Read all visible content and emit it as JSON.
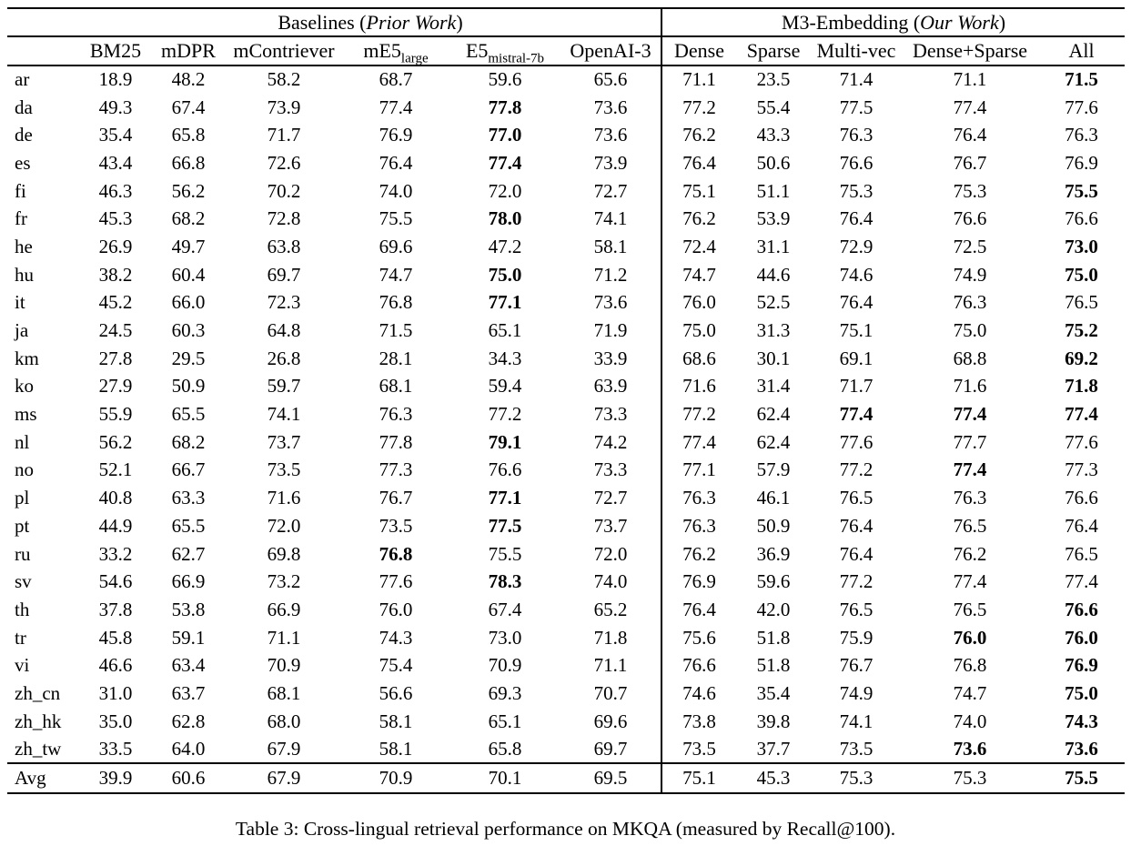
{
  "table": {
    "group_headers": {
      "baselines": {
        "prefix": "Baselines (",
        "italic": "Prior Work",
        "suffix": ")"
      },
      "m3": {
        "prefix": "M3-Embedding (",
        "italic": "Our Work",
        "suffix": ")"
      }
    },
    "columns": [
      {
        "id": "bm25",
        "label": "BM25"
      },
      {
        "id": "mdpr",
        "label": "mDPR"
      },
      {
        "id": "mcontriever",
        "label": "mContriever"
      },
      {
        "id": "me5-large",
        "label": "mE5",
        "sub": "large"
      },
      {
        "id": "e5-mistral-7b",
        "label": "E5",
        "sub": "mistral-7b"
      },
      {
        "id": "openai-3",
        "label": "OpenAI-3"
      },
      {
        "id": "dense",
        "label": "Dense"
      },
      {
        "id": "sparse",
        "label": "Sparse"
      },
      {
        "id": "multi-vec",
        "label": "Multi-vec"
      },
      {
        "id": "dense-sparse",
        "label": "Dense+Sparse"
      },
      {
        "id": "all",
        "label": "All"
      }
    ],
    "rows": [
      {
        "label": "ar",
        "values": [
          "18.9",
          "48.2",
          "58.2",
          "68.7",
          "59.6",
          "65.6",
          "71.1",
          "23.5",
          "71.4",
          "71.1",
          "71.5"
        ],
        "bold": [
          10
        ]
      },
      {
        "label": "da",
        "values": [
          "49.3",
          "67.4",
          "73.9",
          "77.4",
          "77.8",
          "73.6",
          "77.2",
          "55.4",
          "77.5",
          "77.4",
          "77.6"
        ],
        "bold": [
          4
        ]
      },
      {
        "label": "de",
        "values": [
          "35.4",
          "65.8",
          "71.7",
          "76.9",
          "77.0",
          "73.6",
          "76.2",
          "43.3",
          "76.3",
          "76.4",
          "76.3"
        ],
        "bold": [
          4
        ]
      },
      {
        "label": "es",
        "values": [
          "43.4",
          "66.8",
          "72.6",
          "76.4",
          "77.4",
          "73.9",
          "76.4",
          "50.6",
          "76.6",
          "76.7",
          "76.9"
        ],
        "bold": [
          4
        ]
      },
      {
        "label": "fi",
        "values": [
          "46.3",
          "56.2",
          "70.2",
          "74.0",
          "72.0",
          "72.7",
          "75.1",
          "51.1",
          "75.3",
          "75.3",
          "75.5"
        ],
        "bold": [
          10
        ]
      },
      {
        "label": "fr",
        "values": [
          "45.3",
          "68.2",
          "72.8",
          "75.5",
          "78.0",
          "74.1",
          "76.2",
          "53.9",
          "76.4",
          "76.6",
          "76.6"
        ],
        "bold": [
          4
        ]
      },
      {
        "label": "he",
        "values": [
          "26.9",
          "49.7",
          "63.8",
          "69.6",
          "47.2",
          "58.1",
          "72.4",
          "31.1",
          "72.9",
          "72.5",
          "73.0"
        ],
        "bold": [
          10
        ]
      },
      {
        "label": "hu",
        "values": [
          "38.2",
          "60.4",
          "69.7",
          "74.7",
          "75.0",
          "71.2",
          "74.7",
          "44.6",
          "74.6",
          "74.9",
          "75.0"
        ],
        "bold": [
          4,
          10
        ]
      },
      {
        "label": "it",
        "values": [
          "45.2",
          "66.0",
          "72.3",
          "76.8",
          "77.1",
          "73.6",
          "76.0",
          "52.5",
          "76.4",
          "76.3",
          "76.5"
        ],
        "bold": [
          4
        ]
      },
      {
        "label": "ja",
        "values": [
          "24.5",
          "60.3",
          "64.8",
          "71.5",
          "65.1",
          "71.9",
          "75.0",
          "31.3",
          "75.1",
          "75.0",
          "75.2"
        ],
        "bold": [
          10
        ]
      },
      {
        "label": "km",
        "values": [
          "27.8",
          "29.5",
          "26.8",
          "28.1",
          "34.3",
          "33.9",
          "68.6",
          "30.1",
          "69.1",
          "68.8",
          "69.2"
        ],
        "bold": [
          10
        ]
      },
      {
        "label": "ko",
        "values": [
          "27.9",
          "50.9",
          "59.7",
          "68.1",
          "59.4",
          "63.9",
          "71.6",
          "31.4",
          "71.7",
          "71.6",
          "71.8"
        ],
        "bold": [
          10
        ]
      },
      {
        "label": "ms",
        "values": [
          "55.9",
          "65.5",
          "74.1",
          "76.3",
          "77.2",
          "73.3",
          "77.2",
          "62.4",
          "77.4",
          "77.4",
          "77.4"
        ],
        "bold": [
          8,
          9,
          10
        ]
      },
      {
        "label": "nl",
        "values": [
          "56.2",
          "68.2",
          "73.7",
          "77.8",
          "79.1",
          "74.2",
          "77.4",
          "62.4",
          "77.6",
          "77.7",
          "77.6"
        ],
        "bold": [
          4
        ]
      },
      {
        "label": "no",
        "values": [
          "52.1",
          "66.7",
          "73.5",
          "77.3",
          "76.6",
          "73.3",
          "77.1",
          "57.9",
          "77.2",
          "77.4",
          "77.3"
        ],
        "bold": [
          9
        ]
      },
      {
        "label": "pl",
        "values": [
          "40.8",
          "63.3",
          "71.6",
          "76.7",
          "77.1",
          "72.7",
          "76.3",
          "46.1",
          "76.5",
          "76.3",
          "76.6"
        ],
        "bold": [
          4
        ]
      },
      {
        "label": "pt",
        "values": [
          "44.9",
          "65.5",
          "72.0",
          "73.5",
          "77.5",
          "73.7",
          "76.3",
          "50.9",
          "76.4",
          "76.5",
          "76.4"
        ],
        "bold": [
          4
        ]
      },
      {
        "label": "ru",
        "values": [
          "33.2",
          "62.7",
          "69.8",
          "76.8",
          "75.5",
          "72.0",
          "76.2",
          "36.9",
          "76.4",
          "76.2",
          "76.5"
        ],
        "bold": [
          3
        ]
      },
      {
        "label": "sv",
        "values": [
          "54.6",
          "66.9",
          "73.2",
          "77.6",
          "78.3",
          "74.0",
          "76.9",
          "59.6",
          "77.2",
          "77.4",
          "77.4"
        ],
        "bold": [
          4
        ]
      },
      {
        "label": "th",
        "values": [
          "37.8",
          "53.8",
          "66.9",
          "76.0",
          "67.4",
          "65.2",
          "76.4",
          "42.0",
          "76.5",
          "76.5",
          "76.6"
        ],
        "bold": [
          10
        ]
      },
      {
        "label": "tr",
        "values": [
          "45.8",
          "59.1",
          "71.1",
          "74.3",
          "73.0",
          "71.8",
          "75.6",
          "51.8",
          "75.9",
          "76.0",
          "76.0"
        ],
        "bold": [
          9,
          10
        ]
      },
      {
        "label": "vi",
        "values": [
          "46.6",
          "63.4",
          "70.9",
          "75.4",
          "70.9",
          "71.1",
          "76.6",
          "51.8",
          "76.7",
          "76.8",
          "76.9"
        ],
        "bold": [
          10
        ]
      },
      {
        "label": "zh_cn",
        "values": [
          "31.0",
          "63.7",
          "68.1",
          "56.6",
          "69.3",
          "70.7",
          "74.6",
          "35.4",
          "74.9",
          "74.7",
          "75.0"
        ],
        "bold": [
          10
        ]
      },
      {
        "label": "zh_hk",
        "values": [
          "35.0",
          "62.8",
          "68.0",
          "58.1",
          "65.1",
          "69.6",
          "73.8",
          "39.8",
          "74.1",
          "74.0",
          "74.3"
        ],
        "bold": [
          10
        ]
      },
      {
        "label": "zh_tw",
        "values": [
          "33.5",
          "64.0",
          "67.9",
          "58.1",
          "65.8",
          "69.7",
          "73.5",
          "37.7",
          "73.5",
          "73.6",
          "73.6"
        ],
        "bold": [
          9,
          10
        ]
      }
    ],
    "avg_row": {
      "label": "Avg",
      "values": [
        "39.9",
        "60.6",
        "67.9",
        "70.9",
        "70.1",
        "69.5",
        "75.1",
        "45.3",
        "75.3",
        "75.3",
        "75.5"
      ],
      "bold": [
        10
      ]
    },
    "caption": "Table 3: Cross-lingual retrieval performance on MKQA (measured by Recall@100)."
  }
}
